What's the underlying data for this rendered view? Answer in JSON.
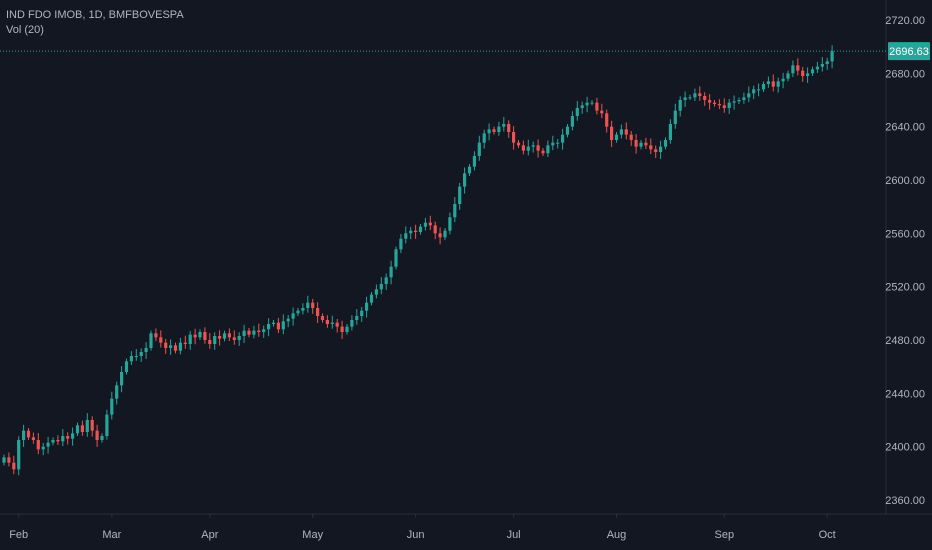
{
  "header": {
    "symbol_line": "IND FDO IMOB, 1D, BMFBOVESPA",
    "indicator_line": "Vol (20)"
  },
  "colors": {
    "background": "#131722",
    "up": "#26a69a",
    "down": "#ef5350",
    "axis_text": "#b2b5be",
    "last_price_line": "#26a69a",
    "last_price_label_bg": "#26a69a",
    "last_price_label_text": "#ffffff",
    "axis_line": "#2a2e39"
  },
  "chart_data": {
    "type": "candlestick",
    "title": "IND FDO IMOB, 1D, BMFBOVESPA",
    "indicator": "Vol (20)",
    "ylim": [
      2350,
      2730
    ],
    "y_ticks": [
      2360,
      2400,
      2440,
      2480,
      2520,
      2560,
      2600,
      2640,
      2680,
      2720
    ],
    "y_tick_labels": [
      "2360.00",
      "2400.00",
      "2440.00",
      "2480.00",
      "2520.00",
      "2560.00",
      "2600.00",
      "2640.00",
      "2680.00",
      "2720.00"
    ],
    "x_labels": [
      {
        "label": "Feb",
        "index": 3
      },
      {
        "label": "Mar",
        "index": 22
      },
      {
        "label": "Apr",
        "index": 42
      },
      {
        "label": "May",
        "index": 63
      },
      {
        "label": "Jun",
        "index": 84
      },
      {
        "label": "Jul",
        "index": 104
      },
      {
        "label": "Aug",
        "index": 125
      },
      {
        "label": "Sep",
        "index": 147
      },
      {
        "label": "Oct",
        "index": 168
      }
    ],
    "last_price": 2696.63,
    "last_price_label": "2696.63",
    "grid": false,
    "closes": [
      2392,
      2388,
      2383,
      2405,
      2412,
      2407,
      2405,
      2398,
      2400,
      2403,
      2405,
      2404,
      2408,
      2406,
      2410,
      2416,
      2411,
      2420,
      2412,
      2405,
      2408,
      2424,
      2436,
      2446,
      2456,
      2464,
      2468,
      2468,
      2471,
      2474,
      2485,
      2482,
      2478,
      2474,
      2476,
      2472,
      2478,
      2477,
      2484,
      2482,
      2486,
      2480,
      2477,
      2483,
      2481,
      2485,
      2482,
      2480,
      2483,
      2487,
      2484,
      2487,
      2486,
      2488,
      2492,
      2493,
      2488,
      2494,
      2496,
      2500,
      2502,
      2504,
      2508,
      2504,
      2498,
      2495,
      2492,
      2493,
      2490,
      2486,
      2490,
      2495,
      2498,
      2502,
      2508,
      2514,
      2518,
      2522,
      2527,
      2535,
      2548,
      2556,
      2560,
      2562,
      2561,
      2565,
      2568,
      2566,
      2560,
      2557,
      2562,
      2572,
      2582,
      2595,
      2605,
      2610,
      2618,
      2628,
      2635,
      2638,
      2636,
      2640,
      2642,
      2636,
      2628,
      2626,
      2622,
      2625,
      2626,
      2622,
      2620,
      2626,
      2628,
      2628,
      2634,
      2640,
      2648,
      2654,
      2656,
      2658,
      2658,
      2652,
      2650,
      2640,
      2630,
      2634,
      2638,
      2634,
      2630,
      2625,
      2628,
      2626,
      2623,
      2621,
      2625,
      2630,
      2642,
      2652,
      2660,
      2662,
      2662,
      2665,
      2663,
      2660,
      2658,
      2657,
      2656,
      2654,
      2658,
      2659,
      2660,
      2662,
      2665,
      2668,
      2668,
      2672,
      2674,
      2670,
      2674,
      2676,
      2680,
      2686,
      2682,
      2678,
      2680,
      2683,
      2685,
      2687,
      2689,
      2696.63
    ]
  }
}
